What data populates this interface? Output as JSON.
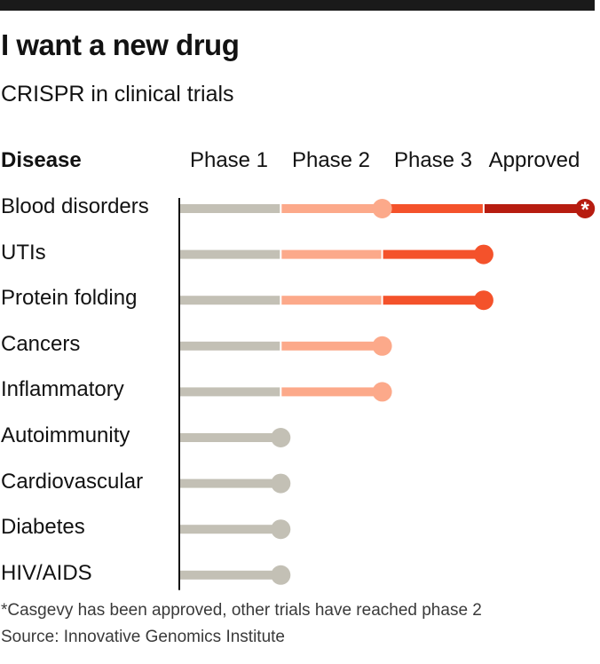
{
  "header": {
    "title": "I want a new drug",
    "subtitle": "CRISPR in clinical trials"
  },
  "chart_data": {
    "type": "bar",
    "category_header": "Disease",
    "stages": [
      "Phase 1",
      "Phase 2",
      "Phase 3",
      "Approved"
    ],
    "stage_colors": [
      "#c3c0b5",
      "#fca98a",
      "#f4522b",
      "#b71c10"
    ],
    "categories": [
      "Blood disorders",
      "UTIs",
      "Protein folding",
      "Cancers",
      "Inflammatory",
      "Autoimmunity",
      "Cardiovascular",
      "Diabetes",
      "HIV/AIDS"
    ],
    "stages_reached": [
      4,
      3,
      3,
      2,
      2,
      1,
      1,
      1,
      1
    ],
    "annotation": {
      "category": "Blood disorders",
      "marker": "*",
      "extra_marker_stage": 2
    }
  },
  "footer": {
    "footnote": "*Casgevy has been approved, other trials have reached phase 2",
    "source": "Source: Innovative Genomics Institute"
  }
}
